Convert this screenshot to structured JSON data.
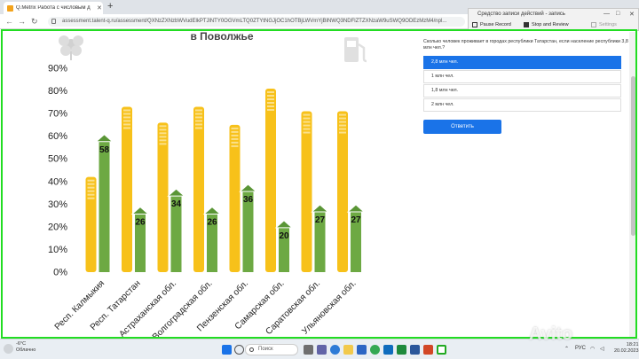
{
  "browser": {
    "tab_title": "Q.Metrix Работа с числовым д",
    "tab_close": "✕",
    "new_tab": "+",
    "url": "assessment.talent-q.ru/assessment/QXNzZXNzbWVudElkPTJlNTY0OGVmLTQ0ZTYtNGJjOC1hOTBjLWVmYjBlNWQ3NDFlZTZXNzaW9uSWQ9ODEzMzM4/npl..."
  },
  "recorder": {
    "title": "Средство записи действий - запись",
    "pause": "Pause Record",
    "stop": "Stop and Review",
    "settings": "Settings"
  },
  "chart_title": "в Поволжье",
  "chart_data": {
    "type": "bar",
    "title": "в Поволжье",
    "categories": [
      "Респ. Калмыкия",
      "Респ. Татарстан",
      "Астраханская обл.",
      "Волгоградская обл.",
      "Пензенская обл.",
      "Самарская обл.",
      "Саратовская обл.",
      "Ульяновская обл."
    ],
    "series": [
      {
        "values": [
          42,
          73,
          66,
          73,
          65,
          81,
          71,
          71
        ],
        "color": "#f7c11a"
      },
      {
        "values": [
          58,
          26,
          34,
          26,
          36,
          20,
          27,
          27
        ],
        "color": "#6da943"
      }
    ],
    "data_labels": [
      "58",
      "26",
      "34",
      "26",
      "36",
      "20",
      "27",
      "27"
    ],
    "y_ticks": [
      "0%",
      "10%",
      "20%",
      "30%",
      "40%",
      "50%",
      "60%",
      "70%",
      "80%",
      "90%"
    ],
    "ylim": [
      0,
      90
    ],
    "grid": false,
    "legend": "none"
  },
  "question": {
    "text": "Сколько человек проживает в городах республики Татарстан, если население республики 3,8 млн чел.?",
    "options": [
      "2,8 млн чел.",
      "1 млн чел.",
      "1,8 млн чел.",
      "2 млн чел."
    ],
    "selected_index": 0,
    "submit_label": "Ответить"
  },
  "taskbar": {
    "weather_temp": "-6°C",
    "weather_desc": "Облачно",
    "search_label": "Поиск",
    "lang": "РУС",
    "time": "18:21",
    "date": "20.02.2023"
  },
  "watermark": "Avito"
}
